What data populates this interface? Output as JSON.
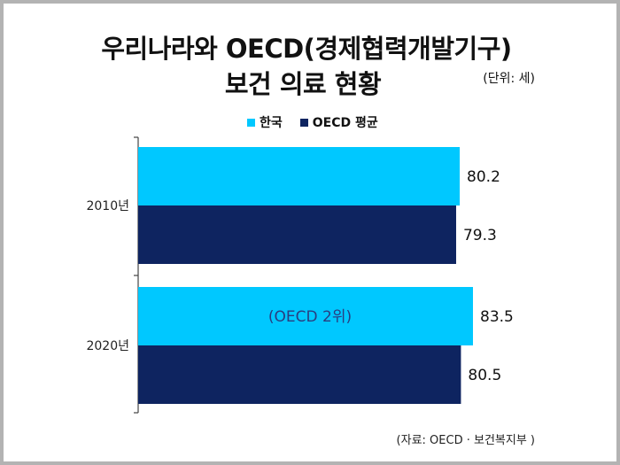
{
  "title_line1": "우리나라와 OECD(경제협력개발기구)",
  "title_line2": "보건 의료 현황",
  "unit": "(단위: 세)",
  "source": "(자료: OECD · 보건복지부 )",
  "colors": {
    "korea": "#00c8ff",
    "oecd": "#0e2460"
  },
  "chart_data": {
    "type": "bar",
    "orientation": "horizontal",
    "categories": [
      "2010년",
      "2020년"
    ],
    "series": [
      {
        "name": "한국",
        "values": [
          80.2,
          83.5
        ]
      },
      {
        "name": "OECD 평균",
        "values": [
          79.3,
          80.5
        ]
      }
    ],
    "data_labels": [
      "80.2",
      "83.5",
      "79.3",
      "80.5"
    ],
    "annotation": "(OECD 2위)",
    "legend_position": "top",
    "grid": false
  }
}
